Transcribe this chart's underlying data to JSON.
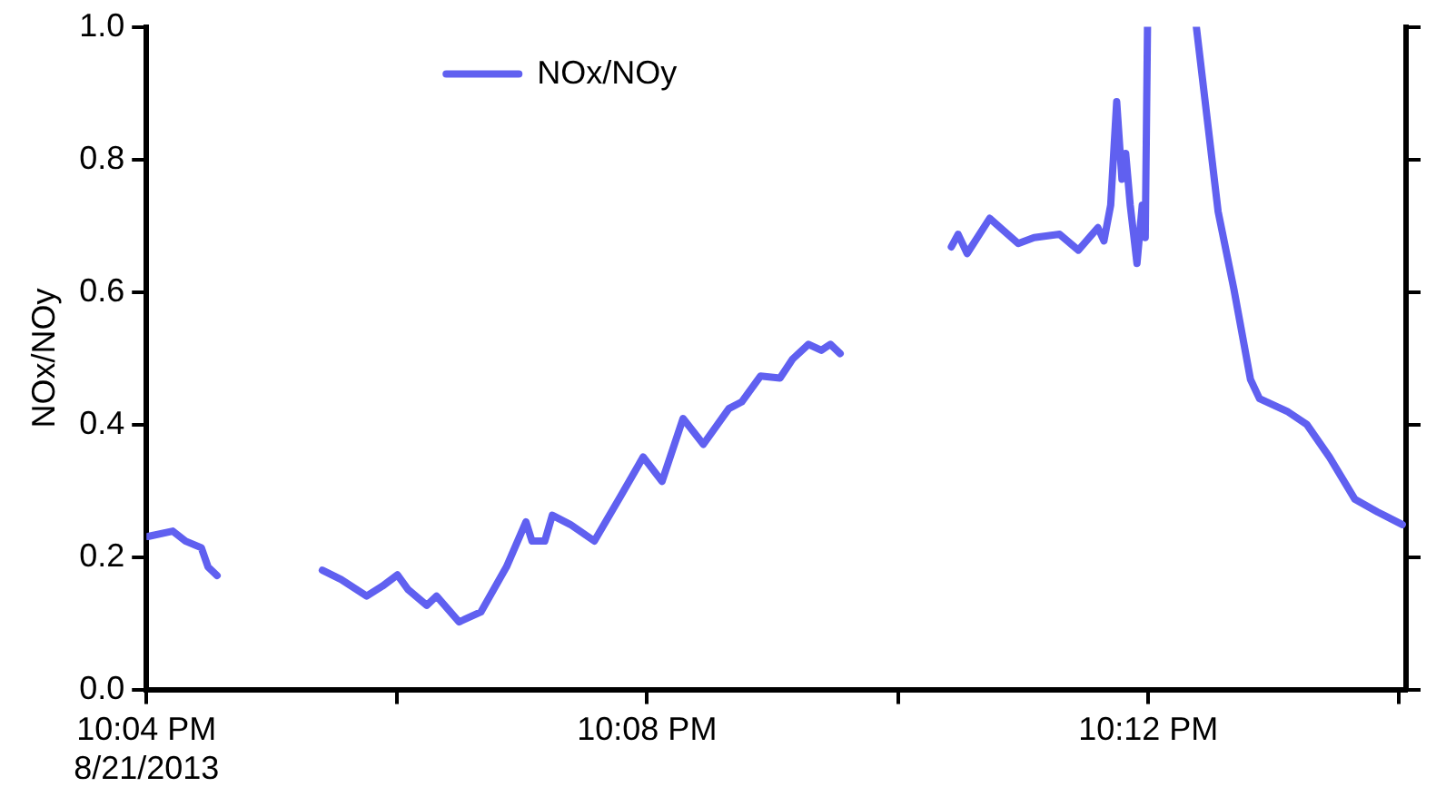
{
  "chart_data": {
    "type": "line",
    "ylabel": "NOx/NOy",
    "legend": "top",
    "grid": false,
    "line_style": "solid",
    "marker": "none",
    "xlim": [
      22.0667,
      22.2343
    ],
    "xticks": [
      {
        "value": 22.0667,
        "label": "10:04 PM\n8/21/2013"
      },
      {
        "value": 22.1,
        "label": null
      },
      {
        "value": 22.1333,
        "label": "10:08 PM"
      },
      {
        "value": 22.1667,
        "label": null
      },
      {
        "value": 22.2,
        "label": "10:12 PM"
      },
      {
        "value": 22.2333,
        "label": null
      }
    ],
    "ylim": [
      0,
      1
    ],
    "yticks": [
      {
        "value": 0,
        "label": "0.0"
      },
      {
        "value": 0.2,
        "label": "0.2"
      },
      {
        "value": 0.4,
        "label": "0.4"
      },
      {
        "value": 0.6,
        "label": "0.6"
      },
      {
        "value": 0.8,
        "label": "0.8"
      },
      {
        "value": 1,
        "label": "1.0"
      }
    ],
    "series": [
      {
        "name": "NOx/NOy",
        "color": "#6060f0",
        "x": [
          22.0669,
          22.0702,
          22.0719,
          22.074,
          22.0749,
          22.0761,
          22.083,
          22.0901,
          22.0926,
          22.096,
          22.0981,
          22.1001,
          22.1015,
          22.104,
          22.1053,
          22.1083,
          22.1112,
          22.1146,
          22.1172,
          22.118,
          22.1197,
          22.1207,
          22.1231,
          22.1263,
          22.1298,
          22.1328,
          22.1353,
          22.1381,
          22.1408,
          22.1442,
          22.1459,
          22.1484,
          22.151,
          22.1527,
          22.1548,
          22.1565,
          22.1577,
          22.159,
          22.166,
          22.1738,
          22.1747,
          22.1759,
          22.1789,
          22.1827,
          22.1848,
          22.1882,
          22.1907,
          22.1933,
          22.1941,
          22.195,
          22.1958,
          22.1965,
          22.197,
          22.1976,
          22.1985,
          22.1992,
          22.1996,
          22.1999,
          22.203,
          22.2064,
          22.2093,
          22.2114,
          22.2136,
          22.2148,
          22.2186,
          22.2211,
          22.2241,
          22.2275,
          22.2305,
          22.2338
        ],
        "values": [
          0.231,
          0.239,
          0.224,
          0.214,
          0.185,
          0.172,
          null,
          0.18,
          0.166,
          0.141,
          0.156,
          0.173,
          0.151,
          0.127,
          0.141,
          0.102,
          0.117,
          0.185,
          0.253,
          0.224,
          0.224,
          0.263,
          0.249,
          0.224,
          0.292,
          0.351,
          0.314,
          0.409,
          0.37,
          0.424,
          0.434,
          0.473,
          0.47,
          0.499,
          0.521,
          0.512,
          0.521,
          0.507,
          null,
          0.668,
          0.687,
          0.658,
          0.711,
          0.673,
          0.682,
          0.687,
          0.663,
          0.697,
          0.677,
          0.731,
          0.887,
          0.77,
          0.809,
          0.731,
          0.643,
          0.731,
          0.682,
          1.0,
          null,
          1.0,
          0.721,
          0.604,
          0.468,
          0.439,
          0.419,
          0.4,
          0.351,
          0.287,
          0.268,
          0.249
        ]
      }
    ]
  }
}
